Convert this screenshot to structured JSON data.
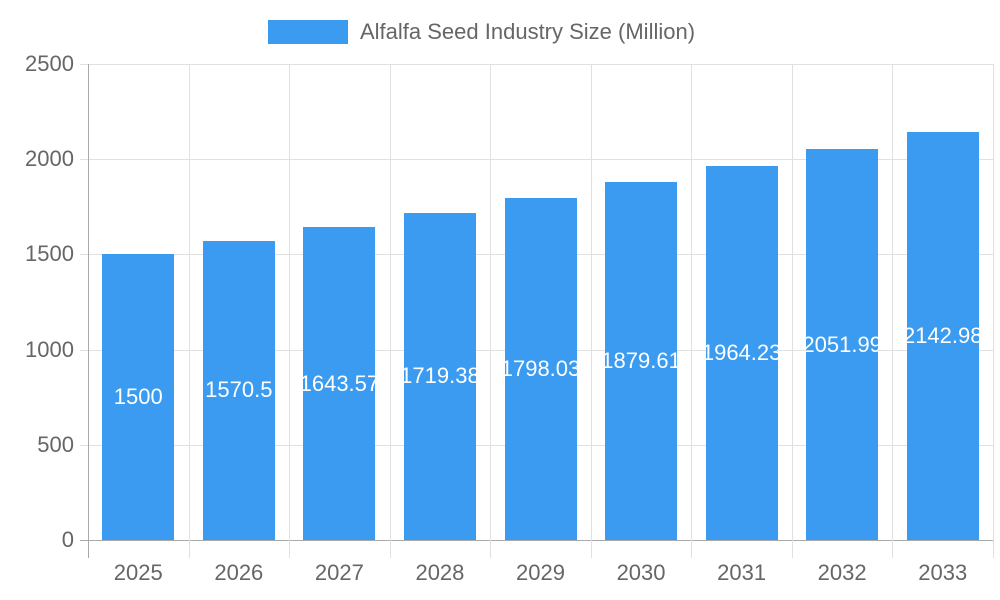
{
  "chart_data": {
    "type": "bar",
    "categories": [
      "2025",
      "2026",
      "2027",
      "2028",
      "2029",
      "2030",
      "2031",
      "2032",
      "2033"
    ],
    "series": [
      {
        "name": "Alfalfa Seed Industry Size (Million)",
        "values": [
          1500,
          1570.5,
          1643.57,
          1719.38,
          1798.03,
          1879.61,
          1964.23,
          2051.99,
          2142.98
        ]
      }
    ],
    "data_labels": [
      "1500",
      "1570.5",
      "1643.57",
      "1719.38",
      "1798.03",
      "1879.61",
      "1964.23",
      "2051.99",
      "2142.98"
    ],
    "yticks": [
      "0",
      "500",
      "1000",
      "1500",
      "2000",
      "2500"
    ],
    "ylim": [
      0,
      2500
    ],
    "grid": true,
    "legend_position": "top",
    "colors": {
      "bar": "#3a9bf0",
      "text": "#666666",
      "grid": "#e0e0e0"
    }
  }
}
